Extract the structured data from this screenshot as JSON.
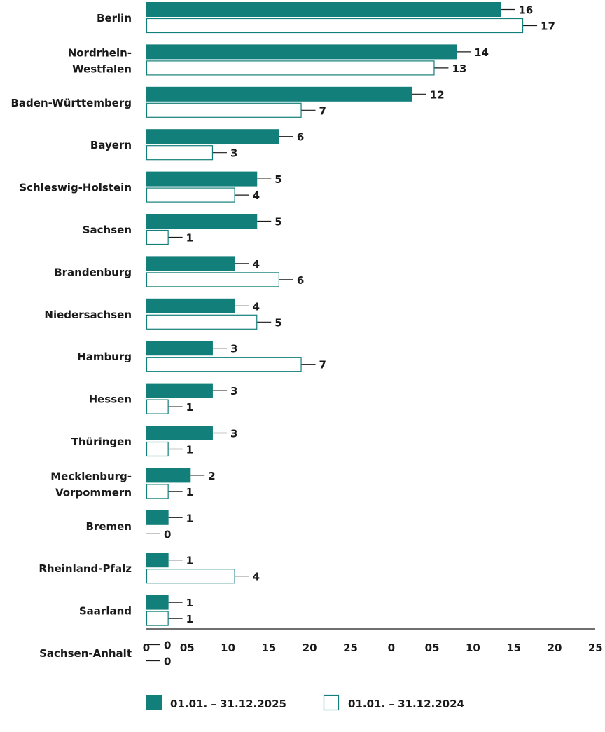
{
  "chart_data": {
    "type": "bar",
    "orientation": "horizontal",
    "categories": [
      "Berlin",
      "Nordrhein-Westfalen",
      "Baden-Württemberg",
      "Bayern",
      "Schleswig-Holstein",
      "Sachsen",
      "Brandenburg",
      "Niedersachsen",
      "Hamburg",
      "Hessen",
      "Thüringen",
      "Mecklenburg-Vorpommern",
      "Bremen",
      "Rheinland-Pfalz",
      "Saarland",
      "Sachsen-Anhalt"
    ],
    "category_display": [
      [
        "Berlin"
      ],
      [
        "Nordrhein-",
        "Westfalen"
      ],
      [
        "Baden-Württemberg"
      ],
      [
        "Bayern"
      ],
      [
        "Schleswig-Holstein"
      ],
      [
        "Sachsen"
      ],
      [
        "Brandenburg"
      ],
      [
        "Niedersachsen"
      ],
      [
        "Hamburg"
      ],
      [
        "Hessen"
      ],
      [
        "Thüringen"
      ],
      [
        "Mecklenburg-",
        "Vorpommern"
      ],
      [
        "Bremen"
      ],
      [
        "Rheinland-Pfalz"
      ],
      [
        "Saarland"
      ],
      [
        "Sachsen-Anhalt"
      ]
    ],
    "series": [
      {
        "name": "01.01. – 31.12.2025",
        "values": [
          16,
          14,
          12,
          6,
          5,
          5,
          4,
          4,
          3,
          3,
          3,
          2,
          1,
          1,
          1,
          0
        ]
      },
      {
        "name": "01.01. – 31.12.2024",
        "values": [
          17,
          13,
          7,
          3,
          4,
          1,
          6,
          5,
          7,
          1,
          1,
          1,
          0,
          4,
          1,
          0
        ]
      }
    ],
    "x_tick_labels": [
      "0",
      "05",
      "10",
      "15",
      "20",
      "25",
      "0",
      "05",
      "10",
      "15",
      "20",
      "25"
    ],
    "xlim": [
      0,
      20
    ],
    "grid": false,
    "legend_position": "bottom",
    "colors": {
      "series_2025": "#137f7a",
      "series_2024": "#ffffff",
      "stroke_2024": "#137f7a",
      "axis": "#1a1a1a",
      "text": "#1a1a1a"
    }
  }
}
